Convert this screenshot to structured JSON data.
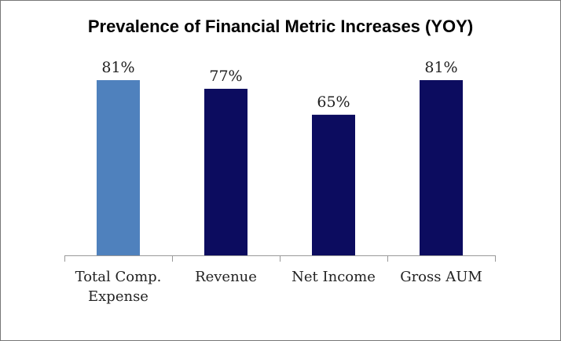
{
  "chart_data": {
    "type": "bar",
    "title": "Prevalence of Financial Metric Increases (YOY)",
    "categories": [
      "Total Comp. Expense",
      "Revenue",
      "Net Income",
      "Gross AUM"
    ],
    "values": [
      81,
      77,
      65,
      81
    ],
    "value_labels": [
      "81%",
      "77%",
      "65%",
      "81%"
    ],
    "colors": [
      "#4f81bd",
      "#0c0c5f",
      "#0c0c5f",
      "#0c0c5f"
    ]
  }
}
